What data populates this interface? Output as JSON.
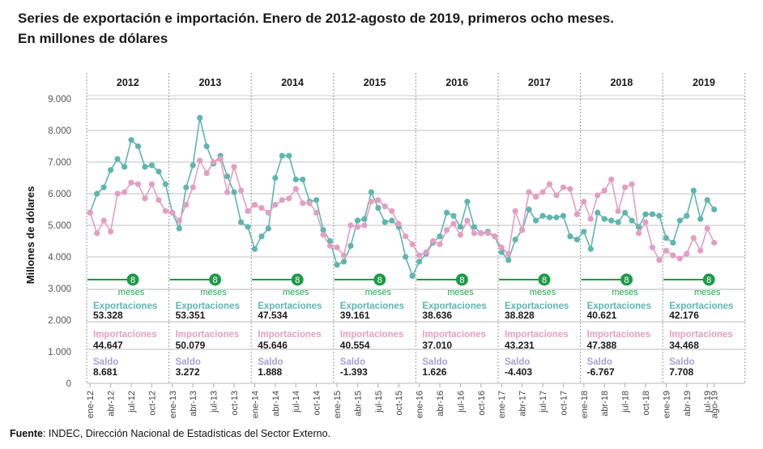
{
  "title_line1": "Series de exportación e importación. Enero de 2012-agosto de 2019, primeros ocho meses.",
  "title_line2": "En millones de dólares",
  "footer": {
    "bold": "Fuente",
    "text": ": INDEC, Dirección Nacional de Estadísticas del Sector Externo."
  },
  "colors": {
    "exports": "#5fb5b0",
    "imports": "#e39fc3",
    "saldo": "#a79fd6",
    "badge": "#1e9a48"
  },
  "chart_data": {
    "type": "line",
    "title": "Series de exportación e importación. Enero de 2012-agosto de 2019, primeros ocho meses. En millones de dólares",
    "xlabel": "",
    "ylabel": "Millones de dólares",
    "ylim": [
      0,
      9000
    ],
    "yticks": [
      "0",
      "1.000",
      "2.000",
      "3.000",
      "4.000",
      "5.000",
      "6.000",
      "7.000",
      "8.000",
      "9.000"
    ],
    "ytick_values": [
      0,
      1000,
      2000,
      3000,
      4000,
      5000,
      6000,
      7000,
      8000,
      9000
    ],
    "grid": true,
    "years": [
      "2012",
      "2013",
      "2014",
      "2015",
      "2016",
      "2017",
      "2018",
      "2019"
    ],
    "xtick_labels": [
      "ene-12",
      "abr-12",
      "jul-12",
      "oct-12",
      "ene-13",
      "abr-13",
      "jul-13",
      "oct-13",
      "ene-14",
      "abr-14",
      "jul-14",
      "oct-14",
      "ene-15",
      "abr-15",
      "jul-15",
      "oct-15",
      "ene-16",
      "abr-16",
      "jul-16",
      "oct-16",
      "ene-17",
      "abr-17",
      "jul-17",
      "oct-17",
      "ene-18",
      "abr-18",
      "jul-18",
      "oct-18",
      "ene-19",
      "abr-19",
      "jul-19",
      "ago-19"
    ],
    "xtick_month_index": [
      0,
      3,
      6,
      9,
      12,
      15,
      18,
      21,
      24,
      27,
      30,
      33,
      36,
      39,
      42,
      45,
      48,
      51,
      54,
      57,
      60,
      63,
      66,
      69,
      72,
      75,
      78,
      81,
      84,
      87,
      90,
      91
    ],
    "series": [
      {
        "name": "Exportaciones",
        "color": "#5fb5b0",
        "values": [
          5400,
          6000,
          6200,
          6750,
          7100,
          6850,
          7700,
          7500,
          6850,
          6900,
          6700,
          6300,
          5400,
          4900,
          6200,
          6900,
          8400,
          7500,
          6950,
          7200,
          6550,
          6050,
          5100,
          4950,
          4250,
          4650,
          4900,
          6500,
          7200,
          7200,
          6450,
          6450,
          5750,
          5800,
          4850,
          4500,
          3750,
          3850,
          4350,
          5150,
          5200,
          6050,
          5550,
          5100,
          5150,
          4950,
          4000,
          3400,
          3850,
          4100,
          4450,
          4650,
          5400,
          5300,
          4950,
          5750,
          4950,
          4750,
          4800,
          4650,
          4150,
          3900,
          4550,
          4850,
          5500,
          5150,
          5300,
          5250,
          5250,
          5300,
          4650,
          4550,
          4800,
          4250,
          5400,
          5200,
          5150,
          5100,
          5400,
          5150,
          4950,
          5350,
          5350,
          5300,
          4600,
          4450,
          5150,
          5300,
          6100,
          5200,
          5800,
          5500
        ]
      },
      {
        "name": "Importaciones",
        "color": "#e39fc3",
        "values": [
          5400,
          4750,
          5150,
          4800,
          6000,
          6050,
          6350,
          6300,
          5850,
          6300,
          5800,
          5450,
          5400,
          5150,
          5650,
          6200,
          7050,
          6650,
          7000,
          7100,
          6050,
          6850,
          6100,
          5450,
          5650,
          5550,
          5400,
          5650,
          5800,
          5850,
          6150,
          5700,
          5700,
          5400,
          4700,
          4350,
          4300,
          4050,
          5000,
          4950,
          5000,
          5750,
          5800,
          5600,
          5450,
          5050,
          4650,
          4400,
          4050,
          4150,
          4500,
          4400,
          4850,
          5050,
          4700,
          5150,
          4750,
          4750,
          4750,
          4650,
          4300,
          4100,
          5450,
          4850,
          6050,
          5900,
          6050,
          6300,
          5950,
          6200,
          6150,
          5350,
          5750,
          5200,
          5950,
          6100,
          6450,
          5450,
          6200,
          6300,
          4750,
          5100,
          4300,
          3900,
          4200,
          4050,
          3950,
          4100,
          4600,
          4200,
          4900,
          4450
        ]
      }
    ],
    "annotations": {
      "badge": "8",
      "badge_caption": "meses",
      "labels": {
        "exports": "Exportaciones",
        "imports": "Importaciones",
        "saldo": "Saldo"
      },
      "totals": [
        {
          "year": "2012",
          "exports": "53.328",
          "imports": "44.647",
          "saldo": "8.681"
        },
        {
          "year": "2013",
          "exports": "53.351",
          "imports": "50.079",
          "saldo": "3.272"
        },
        {
          "year": "2014",
          "exports": "47.534",
          "imports": "45.646",
          "saldo": "1.888"
        },
        {
          "year": "2015",
          "exports": "39.161",
          "imports": "40.554",
          "saldo": "-1.393"
        },
        {
          "year": "2016",
          "exports": "38.636",
          "imports": "37.010",
          "saldo": "1.626"
        },
        {
          "year": "2017",
          "exports": "38.828",
          "imports": "43.231",
          "saldo": "-4.403"
        },
        {
          "year": "2018",
          "exports": "40.621",
          "imports": "47.388",
          "saldo": "-6.767"
        },
        {
          "year": "2019",
          "exports": "42.176",
          "imports": "34.468",
          "saldo": "7.708"
        }
      ]
    }
  }
}
